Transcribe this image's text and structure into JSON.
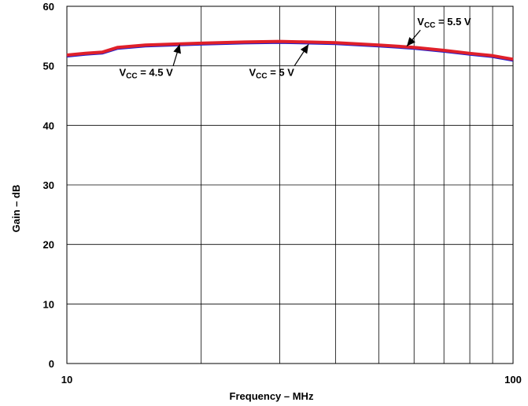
{
  "chart_data": {
    "type": "line",
    "title": "",
    "xlabel": "Frequency – MHz",
    "ylabel": "Gain – dB",
    "x_scale": "log",
    "xlim": [
      10,
      100
    ],
    "ylim": [
      0,
      60
    ],
    "x_ticks": [
      10,
      100
    ],
    "x_tick_labels": [
      "10",
      "100"
    ],
    "y_ticks": [
      0,
      10,
      20,
      30,
      40,
      50,
      60
    ],
    "y_tick_labels": [
      "0",
      "10",
      "20",
      "30",
      "40",
      "50",
      "60"
    ],
    "grid": true,
    "series": [
      {
        "color": "#1f1fd0",
        "x": [
          10,
          11,
          12,
          13,
          15,
          20,
          25,
          30,
          40,
          50,
          60,
          70,
          80,
          90,
          100
        ],
        "y": [
          51.6,
          51.9,
          52.1,
          52.9,
          53.3,
          53.6,
          53.8,
          53.9,
          53.7,
          53.3,
          52.9,
          52.4,
          51.9,
          51.5,
          50.9
        ]
      },
      {
        "color": "#e0202a",
        "x": [
          10,
          11,
          12,
          13,
          15,
          20,
          25,
          30,
          40,
          50,
          60,
          70,
          80,
          90,
          100
        ],
        "y": [
          51.8,
          52.1,
          52.3,
          53.1,
          53.5,
          53.8,
          54.0,
          54.1,
          53.9,
          53.5,
          53.1,
          52.6,
          52.1,
          51.7,
          51.1
        ]
      }
    ],
    "annotations": [
      {
        "text": "VCC = 4.5 V",
        "main": "V",
        "sub": "CC",
        "rest": " = 4.5 V",
        "x": 13.1,
        "y": 48.3,
        "arrow_to": [
          17.9,
          53.6
        ]
      },
      {
        "text": "VCC = 5 V",
        "main": "V",
        "sub": "CC",
        "rest": " = 5 V",
        "x": 25.6,
        "y": 48.3,
        "arrow_to": [
          34.8,
          53.6
        ]
      },
      {
        "text": "VCC = 5.5 V",
        "main": "V",
        "sub": "CC",
        "rest": " = 5.5 V",
        "x": 61.0,
        "y": 56.8,
        "arrow_to": [
          57.8,
          53.3
        ]
      }
    ]
  }
}
